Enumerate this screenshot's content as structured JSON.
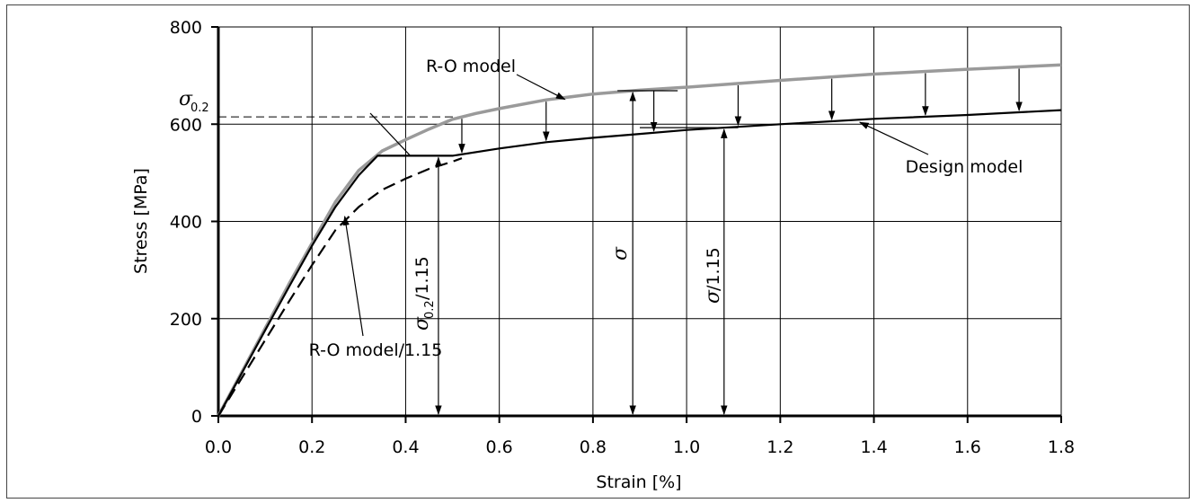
{
  "chart_data": {
    "type": "line",
    "xlabel": "Strain [%]",
    "ylabel": "Stress [MPa]",
    "xlim": [
      0,
      1.8
    ],
    "ylim": [
      0,
      800
    ],
    "xticks": [
      0.0,
      0.2,
      0.4,
      0.6,
      0.8,
      1.0,
      1.2,
      1.4,
      1.6,
      1.8
    ],
    "xtick_labels": [
      "0.0",
      "0.2",
      "0.4",
      "0.6",
      "0.8",
      "1.0",
      "1.2",
      "1.4",
      "1.6",
      "1.8"
    ],
    "yticks": [
      0,
      200,
      400,
      600,
      800
    ],
    "ytick_labels": [
      "0",
      "200",
      "400",
      "600",
      "800"
    ],
    "grid": true,
    "series": [
      {
        "name": "R-O model",
        "color": "#9a9a9a",
        "style": "solid",
        "x": [
          0.0,
          0.05,
          0.1,
          0.15,
          0.2,
          0.25,
          0.3,
          0.35,
          0.4,
          0.45,
          0.5,
          0.55,
          0.6,
          0.7,
          0.8,
          0.9,
          1.0,
          1.2,
          1.4,
          1.6,
          1.8
        ],
        "y": [
          0,
          90,
          180,
          270,
          355,
          440,
          505,
          545,
          568,
          590,
          610,
          622,
          632,
          650,
          662,
          670,
          676,
          690,
          703,
          713,
          722
        ]
      },
      {
        "name": "Design model",
        "color": "#000000",
        "style": "solid",
        "x": [
          0.0,
          0.05,
          0.1,
          0.15,
          0.2,
          0.25,
          0.3,
          0.34,
          0.5,
          0.6,
          0.7,
          0.8,
          0.9,
          1.0,
          1.2,
          1.4,
          1.6,
          1.8
        ],
        "y": [
          0,
          88,
          176,
          264,
          350,
          430,
          495,
          535,
          535,
          550,
          563,
          572,
          580,
          588,
          600,
          611,
          619,
          629
        ]
      },
      {
        "name": "R-O model/1.15",
        "color": "#000000",
        "style": "dashed",
        "x": [
          0.0,
          0.05,
          0.1,
          0.15,
          0.2,
          0.25,
          0.3,
          0.35,
          0.4,
          0.45,
          0.5,
          0.52
        ],
        "y": [
          0,
          78,
          156,
          234,
          310,
          382,
          430,
          465,
          488,
          508,
          523,
          530
        ]
      }
    ],
    "sigma_02_level": 615,
    "annotations": {
      "ro_label": "R-O model",
      "design_label": "Design model",
      "ro115_label": "R-O model/1.15",
      "sigma_symbol": "σ",
      "sigma_sub": "0.2",
      "sigma02_115_suffix": "/1.15",
      "sigma_115_suffix": "/1.15",
      "arrow_x": [
        0.52,
        0.7,
        0.93,
        1.11,
        1.31,
        1.51,
        1.71
      ],
      "sigma_marker_x": 0.885,
      "sigma115_marker_x": 1.08,
      "sigma02_115_marker_x": 0.47
    }
  }
}
